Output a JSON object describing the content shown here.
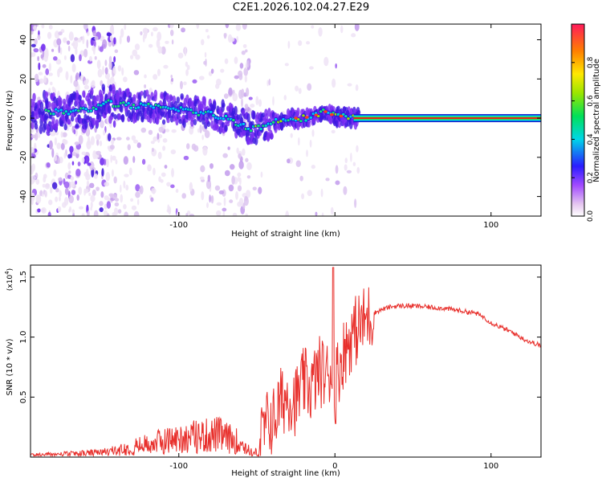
{
  "title": "C2E1.2026.102.04.27.E29",
  "chart_data": [
    {
      "type": "heatmap",
      "xlabel": "Height of straight line (km)",
      "ylabel": "Frequency (Hz)",
      "xlim": [
        -195,
        132
      ],
      "ylim": [
        -50,
        48
      ],
      "xticks": [
        -100,
        0,
        100
      ],
      "xtick_labels": [
        "-100",
        "",
        "100"
      ],
      "yticks": [
        -40,
        -20,
        0,
        20,
        40
      ],
      "ytick_labels": [
        "-40",
        "-20",
        "0",
        "20",
        "40"
      ],
      "grid": false,
      "colorbar": {
        "label": "Normalized spectral amplitude",
        "range": [
          0,
          1
        ],
        "ticks": [
          0.0,
          0.2,
          0.4,
          0.6,
          0.8
        ],
        "tick_labels": [
          "0.0",
          "0.2",
          "0.4",
          "0.6",
          "0.8"
        ]
      },
      "ridge": {
        "x": [
          -195,
          -175,
          -160,
          -150,
          -148,
          -140,
          -130,
          -120,
          -110,
          -100,
          -90,
          -80,
          -70,
          -60,
          -55,
          -50,
          -45,
          -40,
          -35,
          -30,
          -25,
          -20,
          -15,
          -10,
          -8,
          -5,
          0,
          5,
          10,
          15,
          132
        ],
        "y": [
          3,
          3,
          4,
          6,
          9,
          7,
          6,
          6,
          5,
          5,
          3,
          2,
          0,
          -3,
          -5,
          -5,
          -4,
          -2,
          -1,
          0,
          0,
          0,
          1,
          2,
          4,
          3,
          1,
          1,
          0,
          0,
          0
        ]
      }
    },
    {
      "type": "line",
      "xlabel": "Height of straight line (km)",
      "ylabel": "SNR (10 * v/v)",
      "y_multiplier": "(x10",
      "y_multiplier_exp": "4",
      "xlim": [
        -195,
        132
      ],
      "ylim": [
        0,
        1.6
      ],
      "xticks": [
        -100,
        0,
        100
      ],
      "xtick_labels": [
        "-100",
        "0",
        "100"
      ],
      "yticks": [
        0.5,
        1.0,
        1.5
      ],
      "ytick_labels": [
        "0.5",
        "1.0",
        "1.5"
      ],
      "grid": false,
      "series": [
        {
          "color": "#e8302c",
          "x": [
            -195,
            -170,
            -150,
            -140,
            -130,
            -120,
            -110,
            -100,
            -90,
            -80,
            -75,
            -70,
            -65,
            -60,
            -55,
            -52,
            -50,
            -45,
            -42,
            -40,
            -35,
            -30,
            -25,
            -20,
            -15,
            -10,
            -5,
            -2,
            0,
            2,
            5,
            10,
            15,
            20,
            25,
            30,
            35,
            40,
            45,
            50,
            60,
            70,
            80,
            90,
            95,
            100,
            110,
            115,
            120,
            125,
            132
          ],
          "y": [
            0.02,
            0.03,
            0.04,
            0.06,
            0.09,
            0.12,
            0.15,
            0.17,
            0.19,
            0.2,
            0.21,
            0.18,
            0.16,
            0.13,
            0.06,
            0.03,
            0.06,
            0.22,
            0.32,
            0.28,
            0.45,
            0.52,
            0.47,
            0.62,
            0.58,
            0.72,
            0.68,
            0.75,
            0.62,
            0.72,
            0.85,
            1.0,
            1.08,
            1.15,
            1.2,
            1.23,
            1.25,
            1.26,
            1.26,
            1.26,
            1.25,
            1.24,
            1.22,
            1.2,
            1.17,
            1.12,
            1.06,
            1.03,
            0.99,
            0.96,
            0.93
          ]
        }
      ]
    }
  ]
}
